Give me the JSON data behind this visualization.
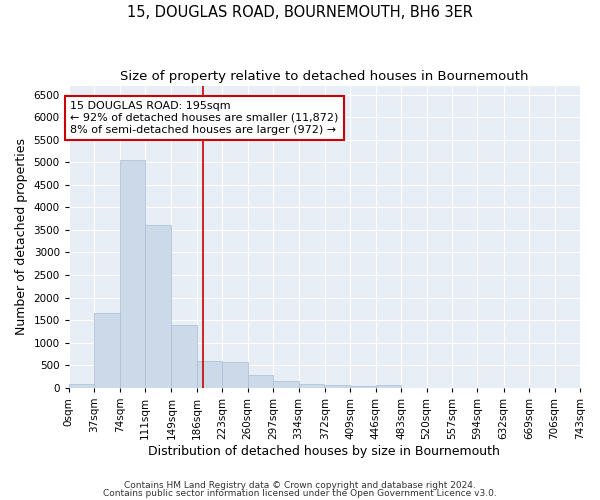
{
  "title": "15, DOUGLAS ROAD, BOURNEMOUTH, BH6 3ER",
  "subtitle": "Size of property relative to detached houses in Bournemouth",
  "xlabel": "Distribution of detached houses by size in Bournemouth",
  "ylabel": "Number of detached properties",
  "bin_labels": [
    "0sqm",
    "37sqm",
    "74sqm",
    "111sqm",
    "149sqm",
    "186sqm",
    "223sqm",
    "260sqm",
    "297sqm",
    "334sqm",
    "372sqm",
    "409sqm",
    "446sqm",
    "483sqm",
    "520sqm",
    "557sqm",
    "594sqm",
    "632sqm",
    "669sqm",
    "706sqm",
    "743sqm"
  ],
  "bin_edges": [
    0,
    37,
    74,
    111,
    149,
    186,
    223,
    260,
    297,
    334,
    372,
    409,
    446,
    483,
    520,
    557,
    594,
    632,
    669,
    706,
    743
  ],
  "bar_heights": [
    75,
    1650,
    5050,
    3600,
    1400,
    600,
    580,
    280,
    140,
    80,
    55,
    45,
    55,
    0,
    0,
    0,
    0,
    0,
    0,
    0
  ],
  "bar_color": "#ccd9e8",
  "bar_edge_color": "#aabdd4",
  "property_line_x": 195,
  "property_line_color": "#cc0000",
  "annotation_text": "15 DOUGLAS ROAD: 195sqm\n← 92% of detached houses are smaller (11,872)\n8% of semi-detached houses are larger (972) →",
  "annotation_box_color": "white",
  "annotation_box_edge": "#cc0000",
  "ylim": [
    0,
    6700
  ],
  "yticks": [
    0,
    500,
    1000,
    1500,
    2000,
    2500,
    3000,
    3500,
    4000,
    4500,
    5000,
    5500,
    6000,
    6500
  ],
  "footnote1": "Contains HM Land Registry data © Crown copyright and database right 2024.",
  "footnote2": "Contains public sector information licensed under the Open Government Licence v3.0.",
  "title_fontsize": 10.5,
  "subtitle_fontsize": 9.5,
  "axis_label_fontsize": 9,
  "tick_fontsize": 7.5,
  "annotation_fontsize": 8,
  "footnote_fontsize": 6.5,
  "bg_color": "#e8eef5"
}
